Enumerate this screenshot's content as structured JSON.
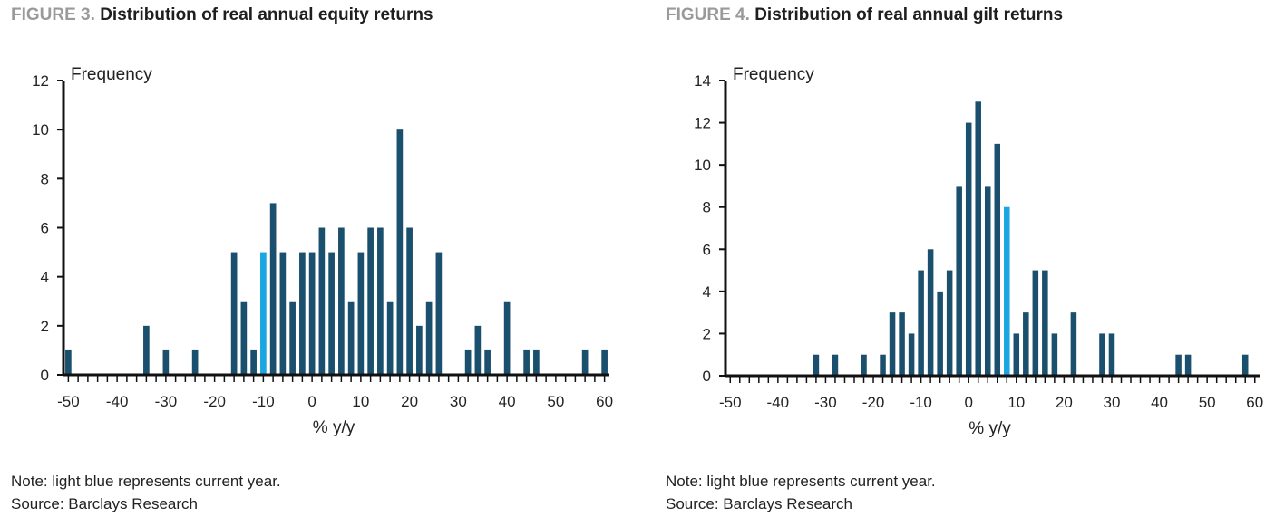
{
  "chart_data": [
    {
      "type": "bar",
      "figure_label": "FIGURE 3.",
      "title": "Distribution of real annual equity returns",
      "ylabel": "Frequency",
      "xlabel": "% y/y",
      "ylim": [
        0,
        12
      ],
      "yticks": [
        0,
        2,
        4,
        6,
        8,
        10,
        12
      ],
      "xlim": [
        -51,
        61
      ],
      "xticks": [
        -50,
        -40,
        -30,
        -20,
        -10,
        0,
        10,
        20,
        30,
        40,
        50,
        60
      ],
      "bin_width": 2,
      "bar_color": "#1b4f6e",
      "highlight_color": "#1aa6e0",
      "highlight_x": -10,
      "x": [
        -50,
        -34,
        -30,
        -24,
        -16,
        -14,
        -12,
        -10,
        -8,
        -6,
        -4,
        -2,
        0,
        2,
        4,
        6,
        8,
        10,
        12,
        14,
        16,
        18,
        20,
        22,
        24,
        26,
        32,
        34,
        36,
        40,
        44,
        46,
        56,
        60
      ],
      "values": [
        1,
        2,
        1,
        1,
        5,
        3,
        1,
        5,
        7,
        5,
        3,
        5,
        5,
        6,
        5,
        6,
        3,
        5,
        6,
        6,
        3,
        10,
        6,
        2,
        3,
        5,
        1,
        2,
        1,
        3,
        1,
        1,
        1,
        1
      ],
      "note": "Note: light blue represents current year.",
      "source": "Source: Barclays Research"
    },
    {
      "type": "bar",
      "figure_label": "FIGURE 4.",
      "title": "Distribution of real annual gilt returns",
      "ylabel": "Frequency",
      "xlabel": "% y/y",
      "ylim": [
        0,
        14
      ],
      "yticks": [
        0,
        2,
        4,
        6,
        8,
        10,
        12,
        14
      ],
      "xlim": [
        -51,
        61
      ],
      "xticks": [
        -50,
        -40,
        -30,
        -20,
        -10,
        0,
        10,
        20,
        30,
        40,
        50,
        60
      ],
      "bin_width": 2,
      "bar_color": "#1b4f6e",
      "highlight_color": "#1aa6e0",
      "highlight_x": 8,
      "x": [
        -32,
        -28,
        -22,
        -18,
        -16,
        -14,
        -12,
        -10,
        -8,
        -6,
        -4,
        -2,
        0,
        2,
        4,
        6,
        8,
        10,
        12,
        14,
        16,
        18,
        22,
        28,
        30,
        44,
        46,
        58
      ],
      "values": [
        1,
        1,
        1,
        1,
        3,
        3,
        2,
        5,
        6,
        4,
        5,
        9,
        12,
        13,
        9,
        11,
        8,
        2,
        3,
        5,
        5,
        2,
        3,
        2,
        2,
        1,
        1,
        1
      ],
      "note": "Note: light blue represents current year.",
      "source": "Source: Barclays Research"
    }
  ]
}
